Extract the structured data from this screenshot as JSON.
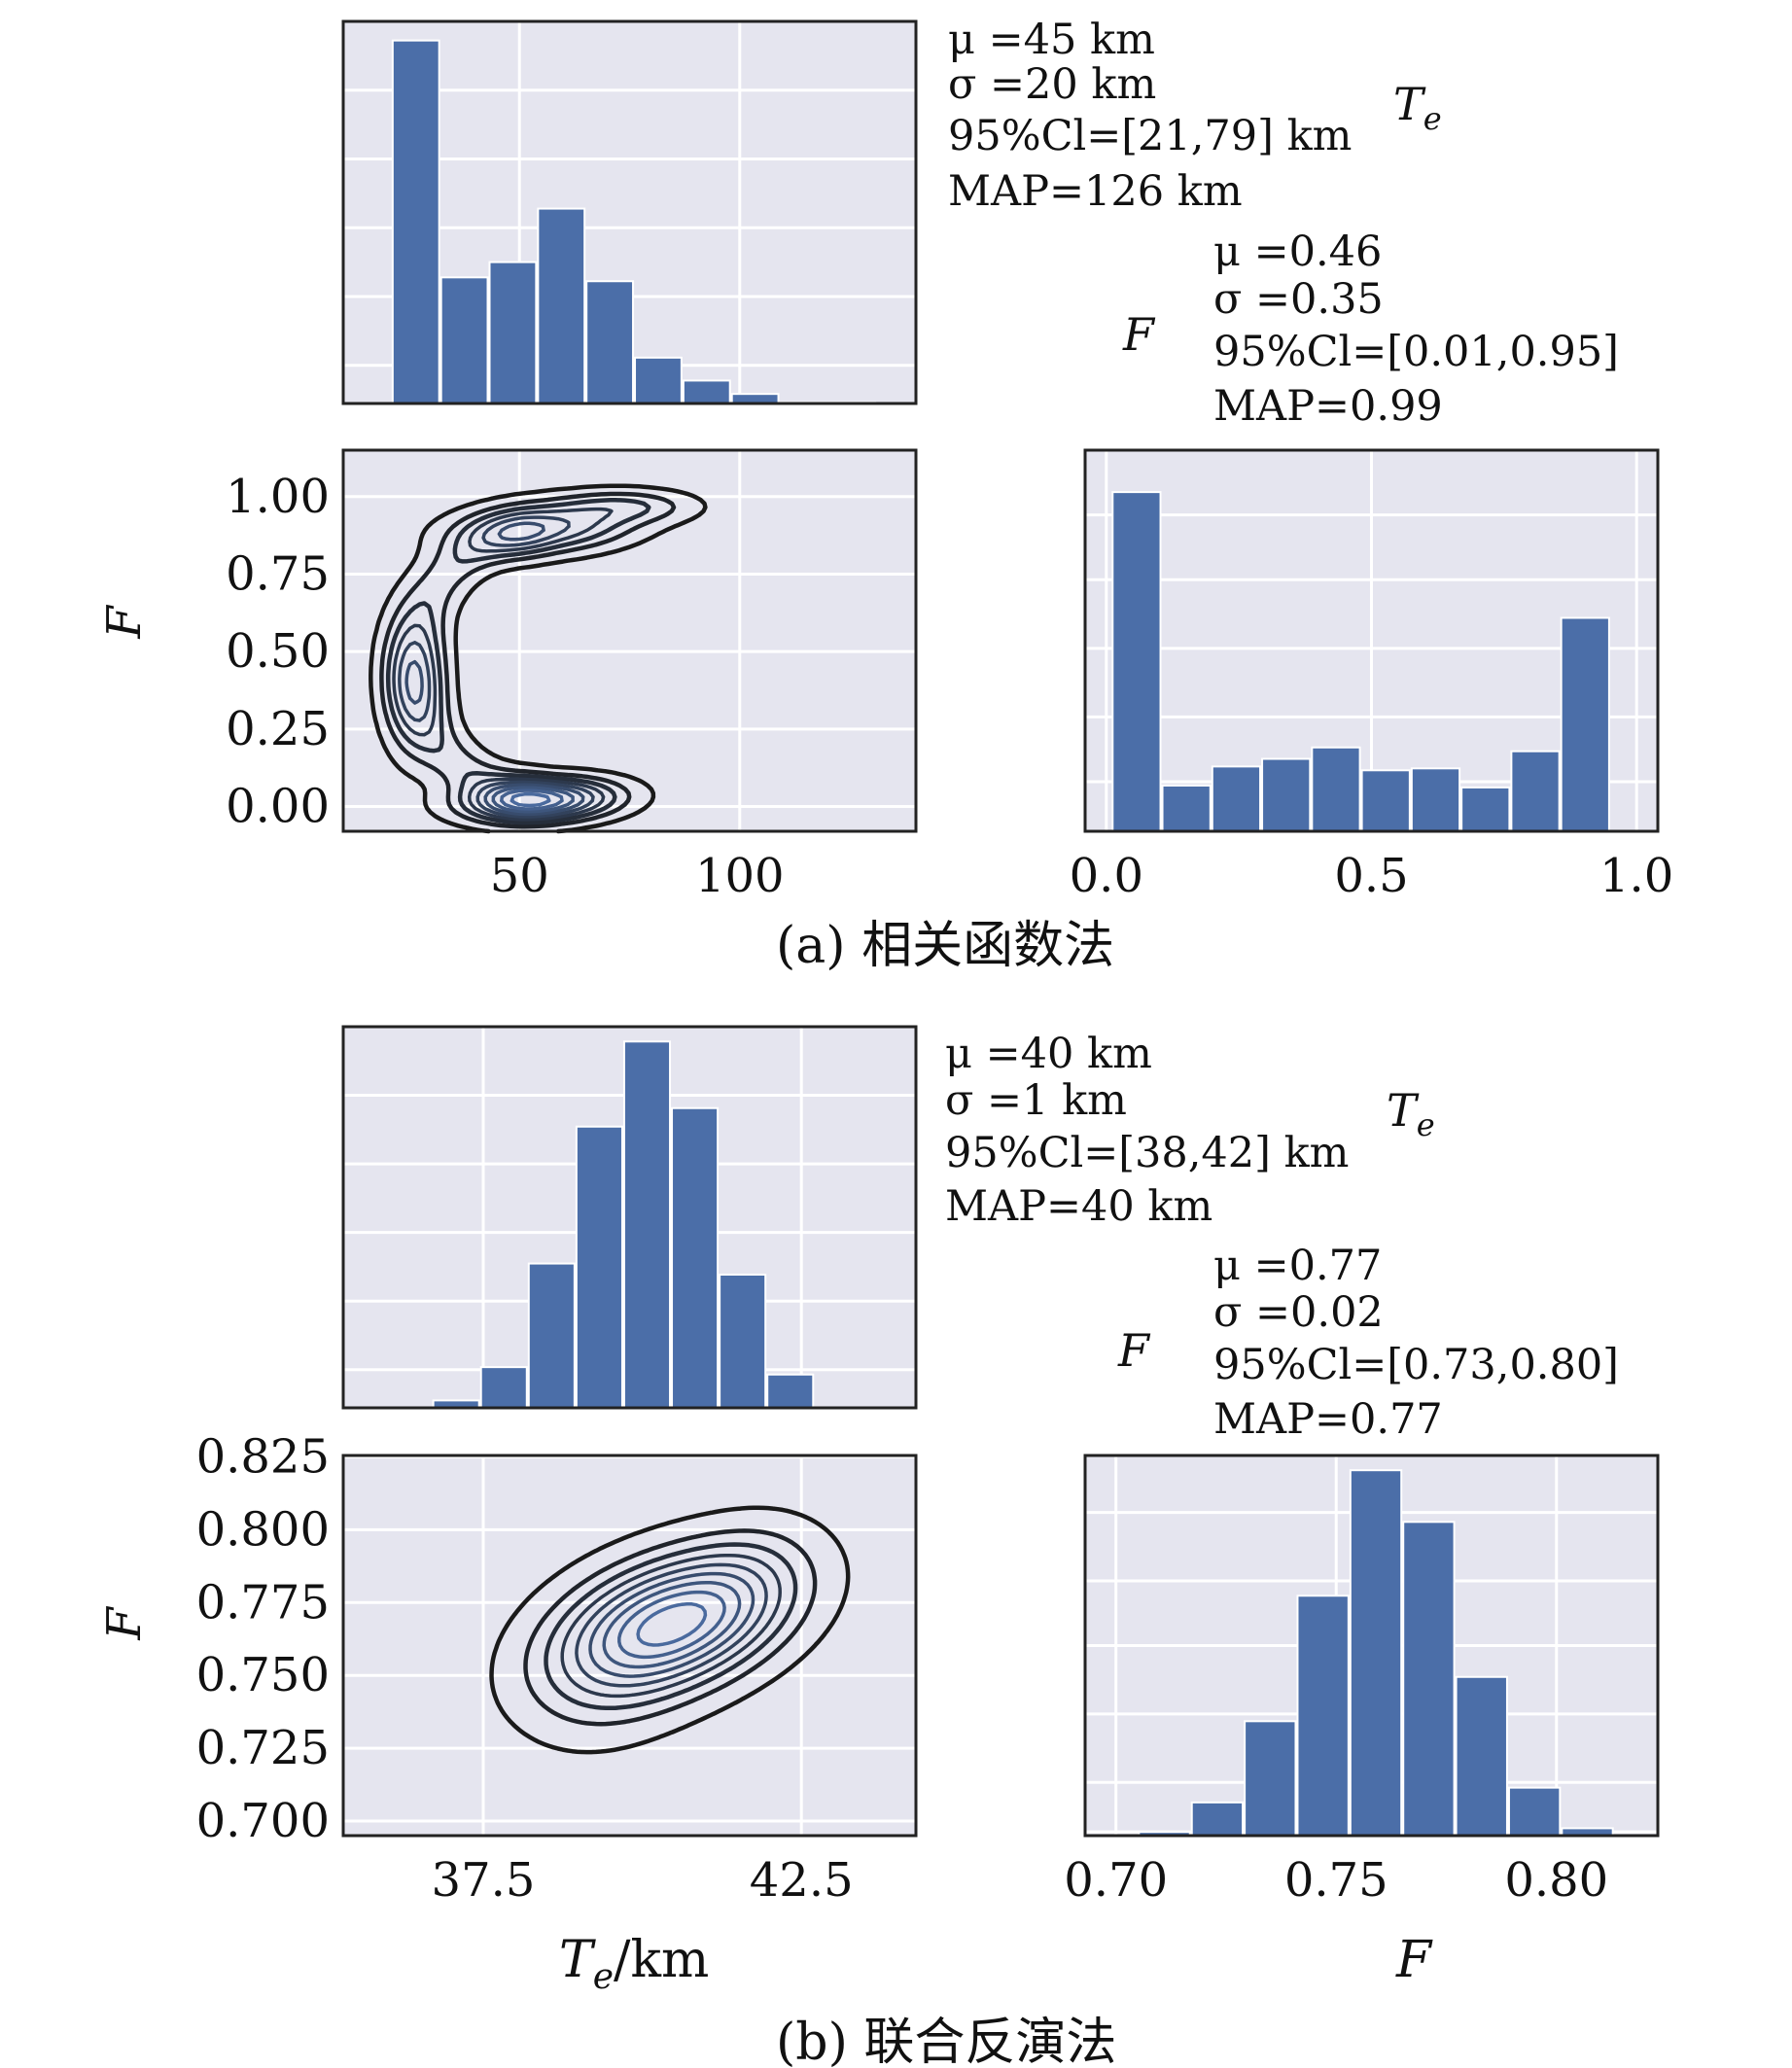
{
  "figure": {
    "caption_a": "(a) 相关函数法",
    "caption_b": "(b) 联合反演法",
    "x_label_te": "T",
    "x_label_te_sub": "e",
    "x_label_te_unit": "/km",
    "x_label_f": "F"
  },
  "colors": {
    "panel_bg": "#e5e5ef",
    "bar": "#4b6ea8",
    "grid": "#ffffff",
    "contour_dark": "#1a1a1a",
    "contour_light": "#4a6a9e"
  },
  "chart_data": [
    {
      "id": "a_te_hist",
      "type": "bar",
      "title": "T_e",
      "title_main": "T",
      "title_sub": "e",
      "xlim": [
        10,
        140
      ],
      "bin_edges": [
        21,
        32,
        43,
        54,
        65,
        76,
        87,
        98,
        109,
        120,
        131
      ],
      "values": [
        0.95,
        0.33,
        0.37,
        0.51,
        0.32,
        0.12,
        0.06,
        0.025,
        0.003,
        0.003
      ],
      "ylim": [
        0,
        1.0
      ],
      "xgrid": [
        50,
        100
      ],
      "stats": [
        "μ =45 km",
        "σ =20 km",
        "95%Cl=[21,79] km",
        "MAP=126 km"
      ]
    },
    {
      "id": "a_kde",
      "type": "contour",
      "xlim": [
        10,
        140
      ],
      "ylim": [
        -0.08,
        1.15
      ],
      "xticks": [
        50,
        100
      ],
      "xtick_labels": [
        "50",
        "100"
      ],
      "yticks": [
        0.0,
        0.25,
        0.5,
        0.75,
        1.0
      ],
      "ytick_labels": [
        "0.00",
        "0.25",
        "0.50",
        "0.75",
        "1.00"
      ],
      "ylabel": "F",
      "levels": 9
    },
    {
      "id": "a_f_hist",
      "type": "bar",
      "title": "F",
      "xlim": [
        -0.04,
        1.04
      ],
      "bin_edges": [
        0.01,
        0.104,
        0.198,
        0.292,
        0.386,
        0.48,
        0.574,
        0.668,
        0.762,
        0.856,
        0.95
      ],
      "values": [
        0.89,
        0.12,
        0.17,
        0.19,
        0.22,
        0.16,
        0.165,
        0.115,
        0.21,
        0.56
      ],
      "ylim": [
        0,
        1.0
      ],
      "xticks": [
        0.0,
        0.5,
        1.0
      ],
      "xtick_labels": [
        "0.0",
        "0.5",
        "1.0"
      ],
      "stats": [
        "μ =0.46",
        "σ =0.35",
        "95%Cl=[0.01,0.95]",
        "MAP=0.99"
      ]
    },
    {
      "id": "b_te_hist",
      "type": "bar",
      "title": "T_e",
      "title_main": "T",
      "title_sub": "e",
      "xlim": [
        35.3,
        44.3
      ],
      "bin_edges": [
        36.7,
        37.45,
        38.2,
        38.95,
        39.7,
        40.45,
        41.2,
        41.95,
        42.7
      ],
      "values": [
        0.02,
        0.11,
        0.39,
        0.76,
        0.99,
        0.81,
        0.36,
        0.09
      ],
      "ylim": [
        0,
        1.03
      ],
      "xgrid": [
        37.5,
        42.5
      ],
      "stats": [
        "μ =40 km",
        "σ =1 km",
        "95%Cl=[38,42] km",
        "MAP=40 km"
      ]
    },
    {
      "id": "b_kde",
      "type": "contour",
      "xlim": [
        35.3,
        44.3
      ],
      "ylim": [
        0.695,
        0.8255
      ],
      "xticks": [
        37.5,
        42.5
      ],
      "xtick_labels": [
        "37.5",
        "42.5"
      ],
      "yticks": [
        0.7,
        0.725,
        0.75,
        0.775,
        0.8,
        0.825
      ],
      "ytick_labels": [
        "0.700",
        "0.725",
        "0.750",
        "0.775",
        "0.800",
        "0.825"
      ],
      "ylabel": "F",
      "levels": 9
    },
    {
      "id": "b_f_hist",
      "type": "bar",
      "title": "F",
      "xlim": [
        0.693,
        0.823
      ],
      "bin_edges": [
        0.693,
        0.705,
        0.717,
        0.729,
        0.741,
        0.753,
        0.765,
        0.777,
        0.789,
        0.801,
        0.813
      ],
      "values": [
        0.0,
        0.01,
        0.09,
        0.31,
        0.65,
        0.99,
        0.85,
        0.43,
        0.13,
        0.02
      ],
      "ylim": [
        0,
        1.03
      ],
      "xticks": [
        0.7,
        0.75,
        0.8
      ],
      "xtick_labels": [
        "0.70",
        "0.75",
        "0.80"
      ],
      "stats": [
        "μ =0.77",
        "σ =0.02",
        "95%Cl=[0.73,0.80]",
        "MAP=0.77"
      ]
    }
  ]
}
